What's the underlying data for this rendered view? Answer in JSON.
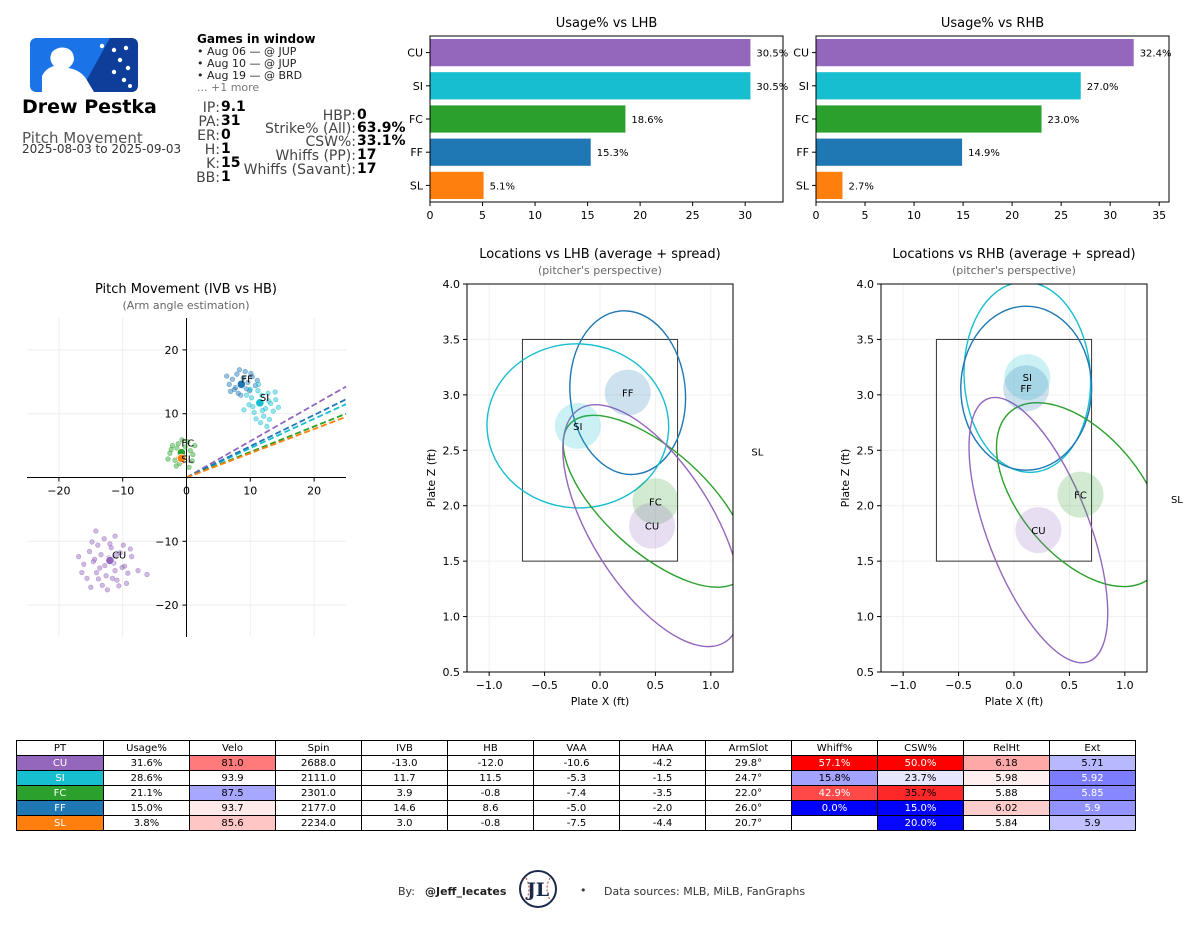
{
  "header": {
    "player_name": "Drew Pestka",
    "report_title": "Pitch Movement",
    "date_range": "2025-08-03 to 2025-09-03",
    "logo": "league-batter-logo"
  },
  "games": {
    "title": "Games in window",
    "items": [
      "• Aug 06 — @ JUP",
      "• Aug 10 — @ JUP",
      "• Aug 19 — @ BRD"
    ],
    "more": "... +1 more"
  },
  "stats_left": [
    {
      "label": "IP:",
      "value": "9.1"
    },
    {
      "label": "PA:",
      "value": "31"
    },
    {
      "label": "ER:",
      "value": "0"
    },
    {
      "label": "H:",
      "value": "1"
    },
    {
      "label": "K:",
      "value": "15"
    },
    {
      "label": "BB:",
      "value": "1"
    }
  ],
  "stats_right": [
    {
      "label": "HBP:",
      "value": "0"
    },
    {
      "label": "Strike% (All):",
      "value": "63.9%"
    },
    {
      "label": "CSW%:",
      "value": "33.1%"
    },
    {
      "label": "Whiffs (PP):",
      "value": "17"
    },
    {
      "label": "Whiffs (Savant):",
      "value": "17"
    }
  ],
  "colors": {
    "CU": "#9467bd",
    "SI": "#17becf",
    "FC": "#2ca02c",
    "FF": "#1f77b4",
    "SL": "#ff7f0e"
  },
  "chart_data": [
    {
      "id": "usage_lhb",
      "type": "bar",
      "orientation": "horizontal",
      "title": "Usage% vs LHB",
      "categories": [
        "CU",
        "SI",
        "FC",
        "FF",
        "SL"
      ],
      "values": [
        30.5,
        30.5,
        18.6,
        15.3,
        5.1
      ],
      "labels": [
        "30.5%",
        "30.5%",
        "18.6%",
        "15.3%",
        "5.1%"
      ],
      "xlim": [
        0,
        33.6
      ],
      "xticks": [
        0,
        5,
        10,
        15,
        20,
        25,
        30
      ],
      "xticklabels": [
        "0",
        "5",
        "10",
        "15",
        "20",
        "25",
        "30"
      ]
    },
    {
      "id": "usage_rhb",
      "type": "bar",
      "orientation": "horizontal",
      "title": "Usage% vs RHB",
      "categories": [
        "CU",
        "SI",
        "FC",
        "FF",
        "SL"
      ],
      "values": [
        32.4,
        27.0,
        23.0,
        14.9,
        2.7
      ],
      "labels": [
        "32.4%",
        "27.0%",
        "23.0%",
        "14.9%",
        "2.7%"
      ],
      "xlim": [
        0,
        36
      ],
      "xticks": [
        0,
        5,
        10,
        15,
        20,
        25,
        30,
        35
      ],
      "xticklabels": [
        "0",
        "5",
        "10",
        "15",
        "20",
        "25",
        "30",
        "35"
      ]
    },
    {
      "id": "movement",
      "type": "scatter",
      "title": "Pitch Movement (IVB vs HB)",
      "subtitle": "(Arm angle estimation)",
      "xlim": [
        -25,
        25
      ],
      "ylim": [
        -25,
        25
      ],
      "xticks": [
        -20,
        -10,
        0,
        10,
        20
      ],
      "xticklabels": [
        "−20",
        "−10",
        "0",
        "10",
        "20"
      ],
      "yticks": [
        -20,
        -10,
        10,
        20
      ],
      "yticklabels": [
        "−20",
        "−10",
        "10",
        "20"
      ],
      "series": [
        {
          "name": "FF",
          "avg": [
            8.6,
            14.6
          ],
          "points": [
            [
              7.5,
              13.8
            ],
            [
              8.9,
              15.6
            ],
            [
              9.6,
              14.9
            ],
            [
              7.9,
              16.2
            ],
            [
              10.3,
              15.8
            ],
            [
              8.1,
              13.2
            ],
            [
              6.7,
              14.6
            ],
            [
              9.2,
              16.6
            ],
            [
              10.8,
              14.4
            ],
            [
              7.2,
              15.4
            ],
            [
              8.5,
              12.9
            ],
            [
              9.9,
              13.6
            ],
            [
              6.3,
              15.9
            ],
            [
              11.1,
              15.2
            ],
            [
              8.3,
              16.9
            ],
            [
              7.7,
              14.1
            ],
            [
              9.4,
              13.9
            ],
            [
              10.1,
              16.3
            ],
            [
              6.9,
              13.5
            ],
            [
              8.8,
              14.3
            ]
          ]
        },
        {
          "name": "SI",
          "avg": [
            11.5,
            11.7
          ],
          "points": [
            [
              10.2,
              12.5
            ],
            [
              12.4,
              10.8
            ],
            [
              11.8,
              12.9
            ],
            [
              13.2,
              11.6
            ],
            [
              10.6,
              10.2
            ],
            [
              12.1,
              9.6
            ],
            [
              14.0,
              12.2
            ],
            [
              11.2,
              13.6
            ],
            [
              9.8,
              11.4
            ],
            [
              12.8,
              13.2
            ],
            [
              13.6,
              10.4
            ],
            [
              10.9,
              9.2
            ],
            [
              11.6,
              8.6
            ],
            [
              14.4,
              11.0
            ],
            [
              9.4,
              12.9
            ],
            [
              12.9,
              12.0
            ],
            [
              10.4,
              11.1
            ],
            [
              11.9,
              10.5
            ],
            [
              13.0,
              9.1
            ],
            [
              9.0,
              10.6
            ],
            [
              11.3,
              14.6
            ],
            [
              12.6,
              8.0
            ],
            [
              10.0,
              13.8
            ],
            [
              13.9,
              13.4
            ]
          ]
        },
        {
          "name": "FC",
          "avg": [
            -0.8,
            3.9
          ],
          "points": [
            [
              -1.5,
              4.6
            ],
            [
              -0.4,
              3.2
            ],
            [
              -1.8,
              2.7
            ],
            [
              0.6,
              4.2
            ],
            [
              -2.2,
              5.0
            ],
            [
              0.2,
              5.6
            ],
            [
              -1.1,
              2.2
            ],
            [
              1.0,
              3.6
            ],
            [
              -2.6,
              3.8
            ],
            [
              -0.7,
              5.9
            ],
            [
              0.9,
              2.6
            ],
            [
              -1.6,
              1.8
            ],
            [
              -2.9,
              2.9
            ],
            [
              0.4,
              1.6
            ],
            [
              -0.2,
              4.8
            ],
            [
              -1.3,
              5.3
            ],
            [
              1.3,
              5.0
            ],
            [
              -2.4,
              4.4
            ]
          ]
        },
        {
          "name": "SL",
          "avg": [
            -0.8,
            3.0
          ],
          "points": [
            [
              -0.9,
              3.4
            ],
            [
              -0.6,
              2.6
            ],
            [
              -1.2,
              3.1
            ]
          ]
        },
        {
          "name": "CU",
          "avg": [
            -12.0,
            -13.0
          ],
          "points": [
            [
              -13.4,
              -12.1
            ],
            [
              -11.2,
              -14.6
            ],
            [
              -14.6,
              -13.2
            ],
            [
              -10.4,
              -11.8
            ],
            [
              -12.6,
              -15.4
            ],
            [
              -15.2,
              -11.6
            ],
            [
              -9.7,
              -13.9
            ],
            [
              -13.9,
              -10.6
            ],
            [
              -11.8,
              -11.0
            ],
            [
              -14.1,
              -14.9
            ],
            [
              -10.9,
              -16.1
            ],
            [
              -16.1,
              -13.6
            ],
            [
              -12.2,
              -12.6
            ],
            [
              -9.2,
              -15.0
            ],
            [
              -13.2,
              -16.9
            ],
            [
              -11.4,
              -13.4
            ],
            [
              -15.6,
              -15.8
            ],
            [
              -8.6,
              -12.4
            ],
            [
              -12.9,
              -9.6
            ],
            [
              -14.8,
              -10.1
            ],
            [
              -10.1,
              -14.1
            ],
            [
              -13.6,
              -14.2
            ],
            [
              -11.6,
              -15.8
            ],
            [
              -16.9,
              -12.4
            ],
            [
              -12.4,
              -17.6
            ],
            [
              -9.9,
              -10.6
            ],
            [
              -14.2,
              -8.4
            ],
            [
              -7.6,
              -14.6
            ],
            [
              -11.0,
              -12.2
            ],
            [
              -15.0,
              -17.2
            ],
            [
              -12.8,
              -13.8
            ],
            [
              -10.6,
              -17.0
            ],
            [
              -13.8,
              -15.9
            ],
            [
              -8.8,
              -11.2
            ],
            [
              -16.4,
              -14.9
            ],
            [
              -12.0,
              -10.4
            ],
            [
              -9.4,
              -16.6
            ],
            [
              -11.2,
              -9.2
            ],
            [
              -6.2,
              -15.2
            ],
            [
              -14.4,
              -12.8
            ]
          ]
        }
      ],
      "arm_lines": [
        {
          "name": "CU",
          "slope": 0.57
        },
        {
          "name": "SI",
          "slope": 0.46
        },
        {
          "name": "FF",
          "slope": 0.49
        },
        {
          "name": "FC",
          "slope": 0.4
        },
        {
          "name": "SL",
          "slope": 0.38
        }
      ]
    },
    {
      "id": "loc_lhb",
      "type": "scatter",
      "title": "Locations vs LHB (average + spread)",
      "subtitle": "(pitcher's perspective)",
      "xlabel": "Plate X (ft)",
      "ylabel": "Plate Z (ft)",
      "xlim": [
        -1.2,
        1.2
      ],
      "ylim": [
        0.5,
        4.0
      ],
      "xticks": [
        -1.0,
        -0.5,
        0.0,
        0.5,
        1.0
      ],
      "xticklabels": [
        "−1.0",
        "−0.5",
        "0.0",
        "0.5",
        "1.0"
      ],
      "yticks": [
        0.5,
        1.0,
        1.5,
        2.0,
        2.5,
        3.0,
        3.5,
        4.0
      ],
      "yticklabels": [
        "0.5",
        "1.0",
        "1.5",
        "2.0",
        "2.5",
        "3.0",
        "3.5",
        "4.0"
      ],
      "strike_zone": {
        "x": [
          -0.7,
          0.7
        ],
        "z": [
          1.5,
          3.5
        ]
      },
      "pitches": [
        {
          "name": "FF",
          "mean": [
            0.25,
            3.02
          ],
          "ellipse": {
            "rx": 0.52,
            "rz": 0.74,
            "angle": 5
          }
        },
        {
          "name": "SI",
          "mean": [
            -0.2,
            2.72
          ],
          "ellipse": {
            "rx": 0.82,
            "rz": 0.74,
            "angle": -3
          }
        },
        {
          "name": "FC",
          "mean": [
            0.5,
            2.04
          ],
          "ellipse": {
            "rx": 1.04,
            "rz": 0.46,
            "angle": -42
          }
        },
        {
          "name": "CU",
          "mean": [
            0.47,
            1.82
          ],
          "ellipse": {
            "rx": 1.24,
            "rz": 0.55,
            "angle": -58
          }
        },
        {
          "name": "SL",
          "mean": [
            1.42,
            2.49
          ],
          "ellipse": null
        }
      ]
    },
    {
      "id": "loc_rhb",
      "type": "scatter",
      "title": "Locations vs RHB (average + spread)",
      "subtitle": "(pitcher's perspective)",
      "xlabel": "Plate X (ft)",
      "ylabel": "Plate Z (ft)",
      "xlim": [
        -1.2,
        1.2
      ],
      "ylim": [
        0.5,
        4.0
      ],
      "xticks": [
        -1.0,
        -0.5,
        0.0,
        0.5,
        1.0
      ],
      "xticklabels": [
        "−1.0",
        "−0.5",
        "0.0",
        "0.5",
        "1.0"
      ],
      "yticks": [
        0.5,
        1.0,
        1.5,
        2.0,
        2.5,
        3.0,
        3.5,
        4.0
      ],
      "yticklabels": [
        "0.5",
        "1.0",
        "1.5",
        "2.0",
        "2.5",
        "3.0",
        "3.5",
        "4.0"
      ],
      "strike_zone": {
        "x": [
          -0.7,
          0.7
        ],
        "z": [
          1.5,
          3.5
        ]
      },
      "pitches": [
        {
          "name": "SI",
          "mean": [
            0.12,
            3.16
          ],
          "ellipse": {
            "rx": 0.57,
            "rz": 0.86,
            "angle": 3
          }
        },
        {
          "name": "FF",
          "mean": [
            0.11,
            3.06
          ],
          "ellipse": {
            "rx": 0.59,
            "rz": 0.74,
            "angle": 0
          }
        },
        {
          "name": "FC",
          "mean": [
            0.6,
            2.1
          ],
          "ellipse": {
            "rx": 0.98,
            "rz": 0.55,
            "angle": -50
          }
        },
        {
          "name": "CU",
          "mean": [
            0.22,
            1.78
          ],
          "ellipse": {
            "rx": 1.27,
            "rz": 0.46,
            "angle": -69
          }
        },
        {
          "name": "SL",
          "mean": [
            1.47,
            2.06
          ],
          "ellipse": null
        }
      ]
    },
    {
      "id": "pitch_table",
      "type": "table",
      "columns": [
        "PT",
        "Usage%",
        "Velo",
        "Spin",
        "IVB",
        "HB",
        "VAA",
        "HAA",
        "ArmSlot",
        "Whiff%",
        "CSW%",
        "RelHt",
        "Ext"
      ],
      "rows": [
        [
          "CU",
          "31.6%",
          "81.0",
          "2688.0",
          "-13.0",
          "-12.0",
          "-10.6",
          "-4.2",
          "29.8°",
          "57.1%",
          "50.0%",
          "6.18",
          "5.71"
        ],
        [
          "SI",
          "28.6%",
          "93.9",
          "2111.0",
          "11.7",
          "11.5",
          "-5.3",
          "-1.5",
          "24.7°",
          "15.8%",
          "23.7%",
          "5.98",
          "5.92"
        ],
        [
          "FC",
          "21.1%",
          "87.5",
          "2301.0",
          "3.9",
          "-0.8",
          "-7.4",
          "-3.5",
          "22.0°",
          "42.9%",
          "35.7%",
          "5.88",
          "5.85"
        ],
        [
          "FF",
          "15.0%",
          "93.7",
          "2177.0",
          "14.6",
          "8.6",
          "-5.0",
          "-2.0",
          "26.0°",
          "0.0%",
          "15.0%",
          "6.02",
          "5.9"
        ],
        [
          "SL",
          "3.8%",
          "85.6",
          "2234.0",
          "3.0",
          "-0.8",
          "-7.5",
          "-4.4",
          "20.7°",
          "",
          "20.0%",
          "5.84",
          "5.9"
        ]
      ],
      "cell_colors": {
        "Velo": [
          "#ff7a7a",
          "#ffffff",
          "#a7a7ff",
          "#ffeaea",
          "#ffc6c6"
        ],
        "Whiff%": [
          "#ff0000",
          "#a3a3ff",
          "#ff4848",
          "#0000ff",
          "#ffffff"
        ],
        "CSW%": [
          "#ff0000",
          "#e6e6ff",
          "#ff2828",
          "#0000ff",
          "#0707ff"
        ],
        "RelHt": [
          "#ffa8a8",
          "#ffefef",
          "#ffffff",
          "#ffcccc",
          "#ffffff"
        ],
        "Ext": [
          "#b8b8ff",
          "#7c7cff",
          "#8787ff",
          "#9393ff",
          "#c1c1ff"
        ]
      }
    }
  ],
  "footer": {
    "by": "By:",
    "handle": "@Jeff_lecates",
    "separator": "•",
    "sources": "Data sources: MLB, MiLB, FanGraphs",
    "logo_text": "JL"
  }
}
